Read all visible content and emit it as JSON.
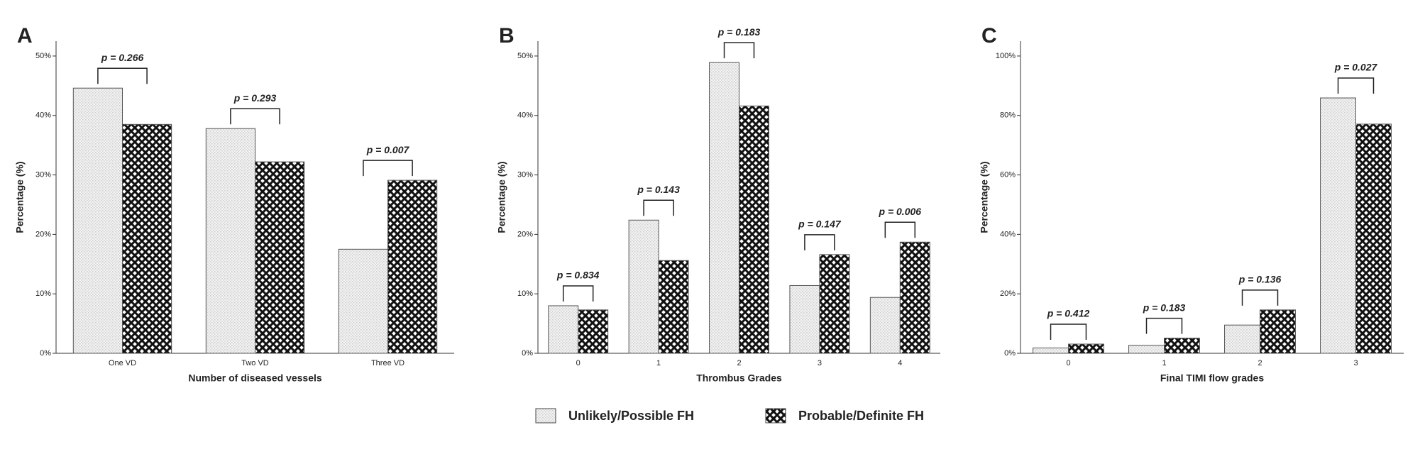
{
  "chart_data": [
    {
      "type": "bar",
      "panel": "A",
      "x_label": "Number of diseased vessels",
      "y_label": "Percentage (%)",
      "categories": [
        "One VD",
        "Two VD",
        "Three VD"
      ],
      "series": [
        {
          "name": "Unlikely/Possible FH",
          "color": "#d0d0d0",
          "values": [
            44.6,
            37.8,
            17.5
          ]
        },
        {
          "name": "Probable/Definite FH",
          "color": "#111111",
          "values": [
            38.5,
            32.2,
            29.1
          ]
        }
      ],
      "annotations": [
        "p = 0.266",
        "p = 0.293",
        "p = 0.007"
      ],
      "ylim": [
        0,
        52.5
      ],
      "yticks": [
        {
          "value": 0,
          "label": "0%"
        },
        {
          "value": 10,
          "label": "10%"
        },
        {
          "value": 20,
          "label": "20%"
        },
        {
          "value": 30,
          "label": "30%"
        },
        {
          "value": 40,
          "label": "40%"
        },
        {
          "value": 50,
          "label": "50%"
        }
      ]
    },
    {
      "type": "bar",
      "panel": "B",
      "x_label": "Thrombus Grades",
      "y_label": "Percentage (%)",
      "categories": [
        "0",
        "1",
        "2",
        "3",
        "4"
      ],
      "series": [
        {
          "color": "#d0d0d0",
          "values": [
            8.0,
            22.4,
            48.9,
            11.4,
            9.4
          ]
        },
        {
          "color": "#111111",
          "values": [
            7.3,
            15.6,
            41.6,
            16.6,
            18.7
          ]
        }
      ],
      "annotations": [
        "p = 0.834",
        "p = 0.143",
        "p = 0.183",
        "p = 0.147",
        "p = 0.006"
      ],
      "ylim": [
        0,
        52.5
      ],
      "yticks": [
        {
          "value": 0,
          "label": "0%"
        },
        {
          "value": 10,
          "label": "10%"
        },
        {
          "value": 20,
          "label": "20%"
        },
        {
          "value": 30,
          "label": "30%"
        },
        {
          "value": 40,
          "label": "40%"
        },
        {
          "value": 50,
          "label": "50%"
        }
      ]
    },
    {
      "type": "bar",
      "panel": "C",
      "x_label": "Final TIMI flow grades",
      "y_label": "Percentage (%)",
      "categories": [
        "0",
        "1",
        "2",
        "3"
      ],
      "series": [
        {
          "color": "#d0d0d0",
          "values": [
            1.8,
            2.7,
            9.5,
            85.9
          ]
        },
        {
          "color": "#111111",
          "values": [
            3.1,
            5.1,
            14.6,
            77.1
          ]
        }
      ],
      "annotations": [
        "p = 0.412",
        "p = 0.183",
        "p = 0.136",
        "p = 0.027"
      ],
      "ylim": [
        0,
        105
      ],
      "yticks": [
        {
          "value": 0,
          "label": "0%"
        },
        {
          "value": 20,
          "label": "20%"
        },
        {
          "value": 40,
          "label": "40%"
        },
        {
          "value": 60,
          "label": "60%"
        },
        {
          "value": 80,
          "label": "80%"
        },
        {
          "value": 100,
          "label": "100%"
        }
      ]
    }
  ]
}
